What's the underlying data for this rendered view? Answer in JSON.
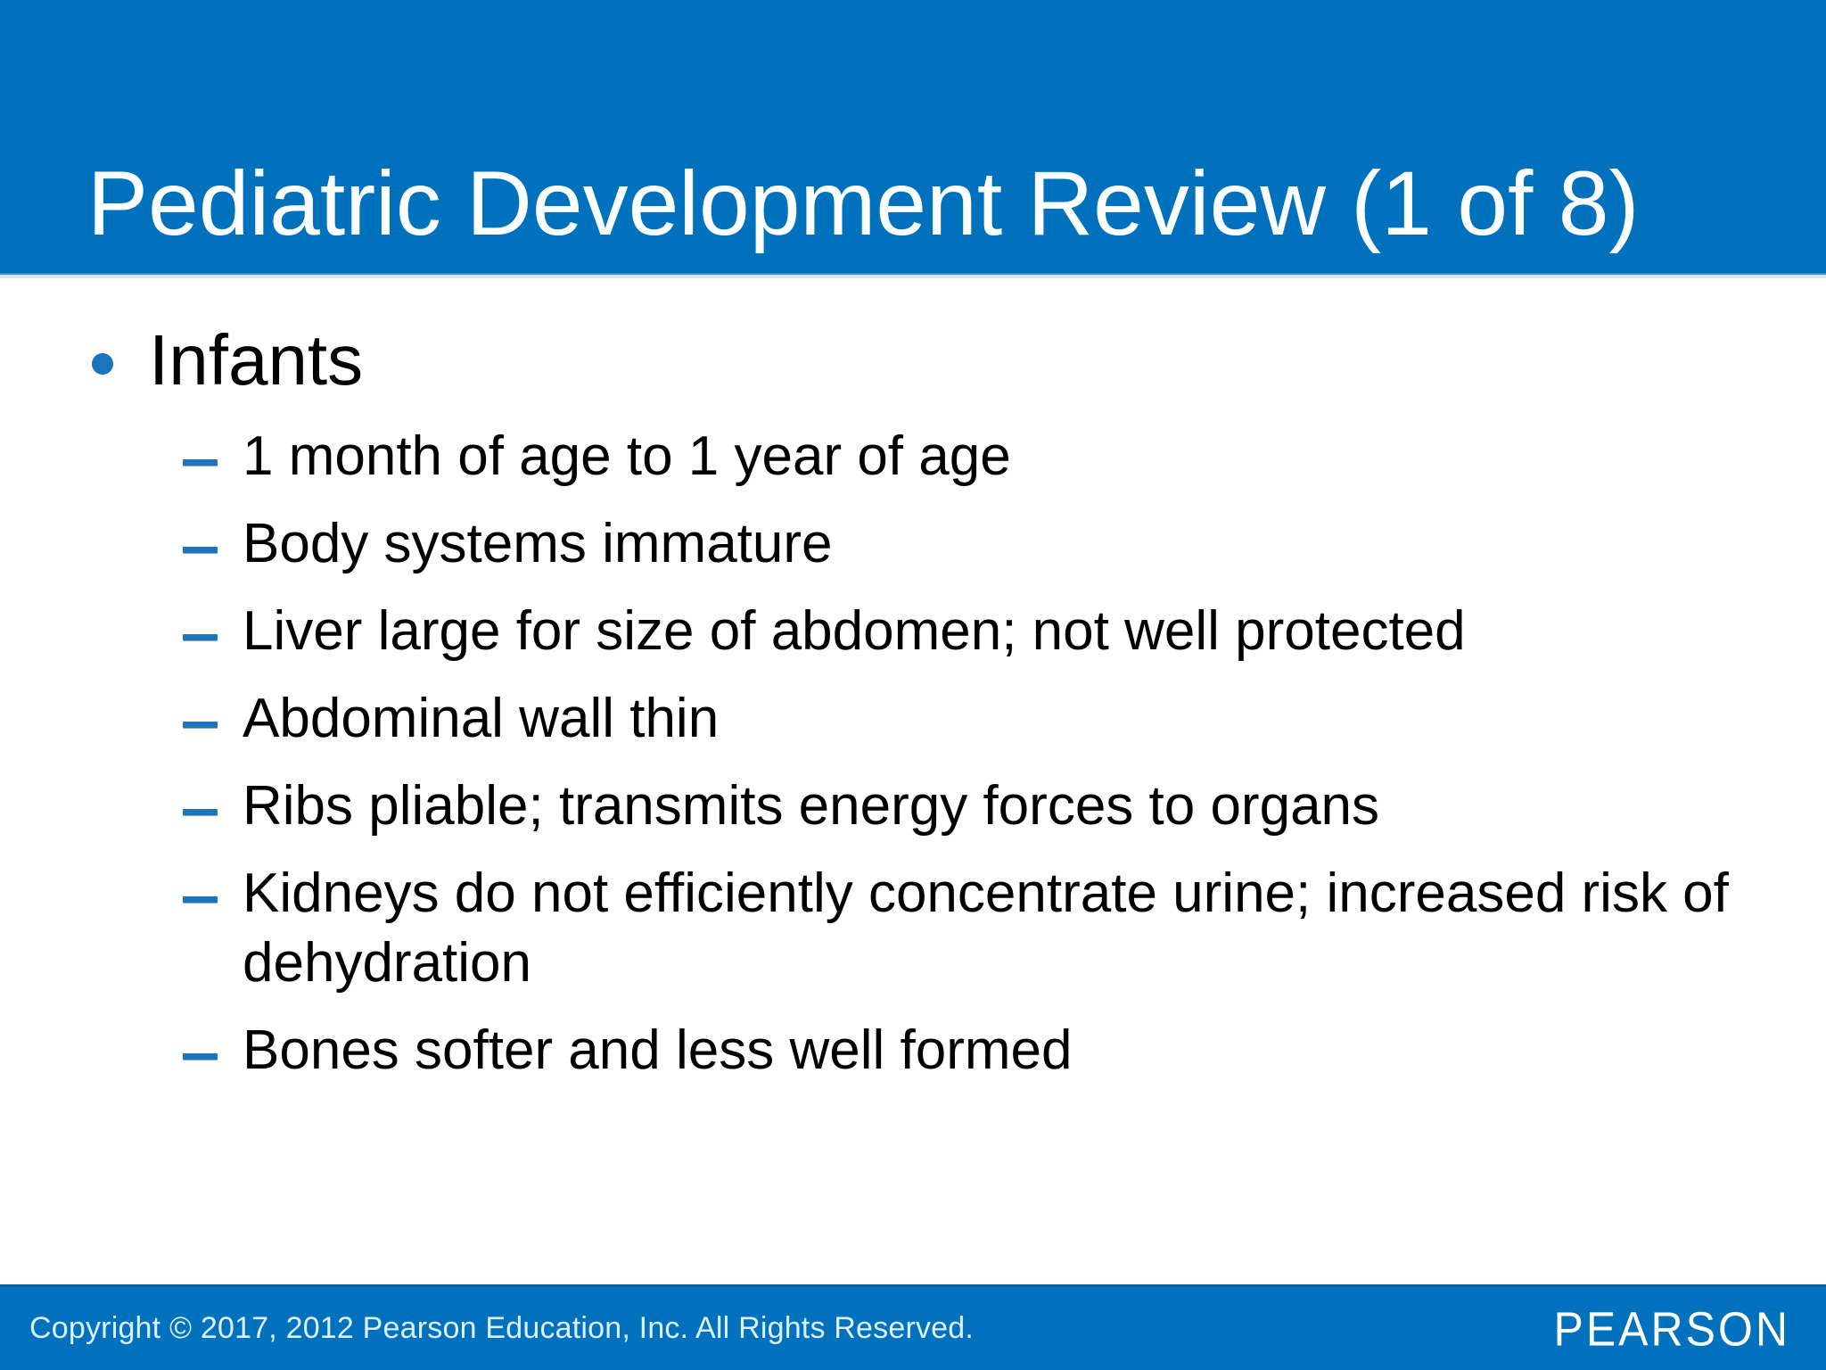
{
  "slide": {
    "title": "Pediatric Development Review (1 of 8)",
    "bullets": {
      "level1": "Infants",
      "level2": [
        "1 month of age to 1 year of age",
        "Body systems immature",
        "Liver large for size of abdomen; not well protected",
        "Abdominal wall thin",
        "Ribs pliable; transmits energy forces to organs",
        "Kidneys do not efficiently concentrate urine; increased risk of dehydration",
        "Bones softer and less well formed"
      ]
    },
    "footer": {
      "copyright": "Copyright © 2017, 2012 Pearson Education, Inc. All Rights Reserved.",
      "brand": "PEARSON"
    }
  },
  "theme": {
    "header_blue": "#0071BC",
    "footer_blue": "#0071BC",
    "bullet_blue": "#1B74BC",
    "title_color": "#FDFEFF",
    "body_text": "#000000",
    "copyright_color": "#DCF0FA",
    "body_bg": "#FEFEFE"
  }
}
